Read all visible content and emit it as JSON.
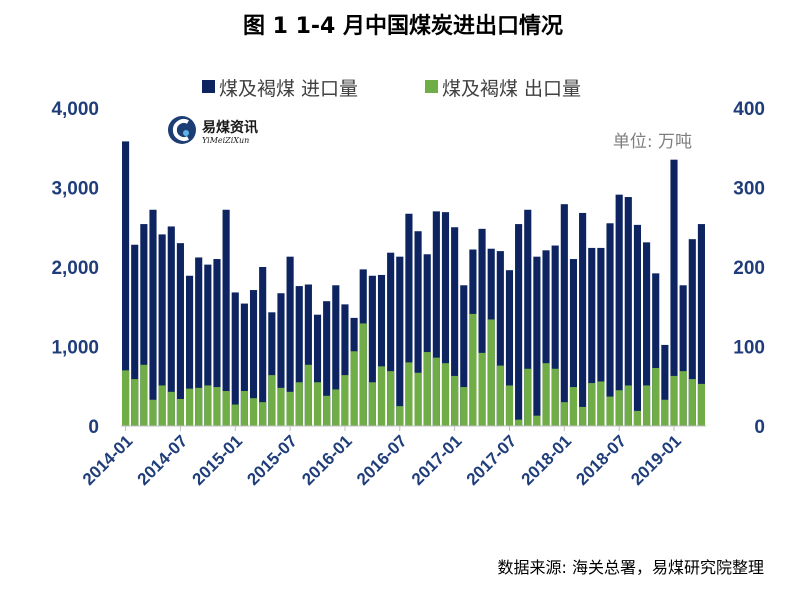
{
  "chart_data": {
    "type": "bar",
    "title": "图 1 1-4 月中国煤炭进出口情况",
    "unit": "单位:  万吨",
    "source": "数据来源:  海关总署，易煤研究院整理",
    "logo": {
      "cn": "易煤资讯",
      "en": "YiMeiZiXun"
    },
    "y_left": {
      "lim": [
        0,
        4000
      ],
      "ticks": [
        "0",
        "1,000",
        "2,000",
        "3,000",
        "4,000"
      ]
    },
    "y_right": {
      "lim": [
        0,
        400
      ],
      "ticks": [
        "0",
        "100",
        "200",
        "300",
        "400"
      ]
    },
    "x_tick_labels": [
      "2014-01",
      "2014-07",
      "2015-01",
      "2015-07",
      "2016-01",
      "2016-07",
      "2017-01",
      "2017-07",
      "2018-01",
      "2018-07",
      "2019-01"
    ],
    "categories": [
      "2014-01",
      "2014-02",
      "2014-03",
      "2014-04",
      "2014-05",
      "2014-06",
      "2014-07",
      "2014-08",
      "2014-09",
      "2014-10",
      "2014-11",
      "2014-12",
      "2015-01",
      "2015-02",
      "2015-03",
      "2015-04",
      "2015-05",
      "2015-06",
      "2015-07",
      "2015-08",
      "2015-09",
      "2015-10",
      "2015-11",
      "2015-12",
      "2016-01",
      "2016-02",
      "2016-03",
      "2016-04",
      "2016-05",
      "2016-06",
      "2016-07",
      "2016-08",
      "2016-09",
      "2016-10",
      "2016-11",
      "2016-12",
      "2017-01",
      "2017-02",
      "2017-03",
      "2017-04",
      "2017-05",
      "2017-06",
      "2017-07",
      "2017-08",
      "2017-09",
      "2017-10",
      "2017-11",
      "2017-12",
      "2018-01",
      "2018-02",
      "2018-03",
      "2018-04",
      "2018-05",
      "2018-06",
      "2018-07",
      "2018-08",
      "2018-09",
      "2018-10",
      "2018-11",
      "2018-12",
      "2019-01",
      "2019-02",
      "2019-03",
      "2019-04"
    ],
    "series": [
      {
        "name": "煤及褐煤 进口量",
        "axis": "left",
        "color": "#0d2461",
        "values": [
          3580,
          2280,
          2540,
          2720,
          2410,
          2510,
          2300,
          1890,
          2120,
          2030,
          2100,
          2720,
          1680,
          1540,
          1710,
          2000,
          1430,
          1670,
          2130,
          1760,
          1780,
          1400,
          1570,
          1770,
          1530,
          1360,
          1970,
          1890,
          1900,
          2180,
          2130,
          2670,
          2450,
          2160,
          2700,
          2690,
          2500,
          1770,
          2220,
          2480,
          2230,
          2200,
          1960,
          2540,
          2720,
          2130,
          2210,
          2270,
          2790,
          2100,
          2680,
          2240,
          2240,
          2550,
          2910,
          2880,
          2530,
          2310,
          1920,
          1020,
          3350,
          1770,
          2350,
          2540
        ]
      },
      {
        "name": "煤及褐煤 出口量",
        "axis": "right",
        "color": "#70ad47",
        "values": [
          70,
          59,
          77,
          33,
          51,
          43,
          34,
          47,
          48,
          51,
          49,
          44,
          27,
          44,
          35,
          30,
          64,
          48,
          43,
          55,
          77,
          55,
          38,
          46,
          64,
          94,
          129,
          55,
          75,
          69,
          25,
          80,
          67,
          93,
          86,
          79,
          63,
          49,
          141,
          92,
          134,
          76,
          51,
          8,
          72,
          13,
          79,
          72,
          30,
          49,
          24,
          54,
          56,
          37,
          45,
          51,
          19,
          51,
          73,
          33,
          63,
          69,
          59,
          53
        ]
      }
    ]
  }
}
